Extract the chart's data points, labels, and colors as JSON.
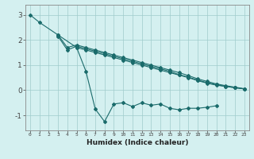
{
  "xlabel": "Humidex (Indice chaleur)",
  "xlim": [
    -0.5,
    23.5
  ],
  "ylim": [
    -1.6,
    3.4
  ],
  "yticks": [
    -1,
    0,
    1,
    2,
    3
  ],
  "xticks": [
    0,
    1,
    2,
    3,
    4,
    5,
    6,
    7,
    8,
    9,
    10,
    11,
    12,
    13,
    14,
    15,
    16,
    17,
    18,
    19,
    20,
    21,
    22,
    23
  ],
  "bg_color": "#d4f0f0",
  "grid_color": "#a0cccc",
  "line_color": "#1a6b6b",
  "lines": [
    {
      "x": [
        0,
        1,
        3,
        5,
        6,
        7,
        8,
        9,
        10,
        11,
        12,
        13,
        14,
        15,
        16,
        17,
        18,
        19,
        20,
        21,
        22,
        23
      ],
      "y": [
        3.0,
        2.7,
        2.2,
        1.7,
        1.6,
        1.5,
        1.4,
        1.3,
        1.2,
        1.1,
        1.0,
        0.9,
        0.8,
        0.7,
        0.6,
        0.5,
        0.38,
        0.28,
        0.2,
        0.15,
        0.1,
        0.05
      ]
    },
    {
      "x": [
        3,
        4,
        5,
        6,
        7,
        8,
        9,
        10,
        11,
        12,
        13,
        14,
        15,
        16,
        17,
        18,
        19,
        20,
        21,
        22,
        23
      ],
      "y": [
        2.15,
        1.6,
        1.75,
        1.65,
        1.55,
        1.45,
        1.35,
        1.25,
        1.15,
        1.05,
        0.95,
        0.85,
        0.75,
        0.62,
        0.52,
        0.4,
        0.3,
        0.22,
        0.15,
        0.1,
        0.05
      ]
    },
    {
      "x": [
        3,
        4,
        5,
        6,
        7,
        8,
        9,
        10,
        11,
        12,
        13,
        14,
        15,
        16,
        17,
        18,
        19,
        20,
        21,
        22,
        23
      ],
      "y": [
        2.2,
        1.7,
        1.8,
        1.7,
        1.6,
        1.5,
        1.4,
        1.3,
        1.2,
        1.1,
        1.0,
        0.9,
        0.8,
        0.7,
        0.58,
        0.45,
        0.35,
        0.25,
        0.18,
        0.12,
        0.06
      ]
    },
    {
      "x": [
        5,
        6,
        7,
        8,
        9,
        10,
        11,
        12,
        13,
        14,
        15,
        16,
        17,
        18,
        19,
        20
      ],
      "y": [
        1.7,
        0.75,
        -0.75,
        -1.25,
        -0.55,
        -0.5,
        -0.65,
        -0.5,
        -0.6,
        -0.55,
        -0.72,
        -0.78,
        -0.72,
        -0.72,
        -0.68,
        -0.62
      ]
    }
  ]
}
